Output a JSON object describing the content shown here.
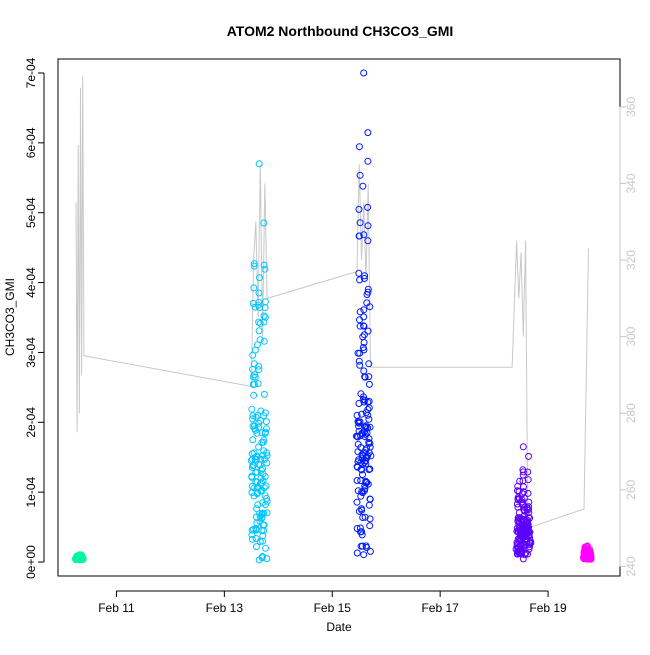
{
  "chart_data": {
    "type": "scatter",
    "title": "ATOM2 Northbound CH3CO3_GMI",
    "xlabel": "Date",
    "ylabel": "CH3CO3_GMI",
    "xlim": [
      "2017-02-09T22:00",
      "2017-02-20T08:00"
    ],
    "ylim": [
      -2e-05,
      0.00072
    ],
    "y2lim": [
      237.5,
      372.5
    ],
    "x_ticks": [
      {
        "label": "Feb 11",
        "date": "2017-02-11"
      },
      {
        "label": "Feb 13",
        "date": "2017-02-13"
      },
      {
        "label": "Feb 15",
        "date": "2017-02-15"
      },
      {
        "label": "Feb 17",
        "date": "2017-02-17"
      },
      {
        "label": "Feb 19",
        "date": "2017-02-19"
      }
    ],
    "y_ticks": [
      {
        "label": "0e+00",
        "value": 0
      },
      {
        "label": "1e-04",
        "value": 0.0001
      },
      {
        "label": "2e-04",
        "value": 0.0002
      },
      {
        "label": "3e-04",
        "value": 0.0003
      },
      {
        "label": "4e-04",
        "value": 0.0004
      },
      {
        "label": "5e-04",
        "value": 0.0005
      },
      {
        "label": "6e-04",
        "value": 0.0006
      },
      {
        "label": "7e-04",
        "value": 0.0007
      }
    ],
    "y2_ticks": [
      {
        "label": "240",
        "value": 240
      },
      {
        "label": "260",
        "value": 260
      },
      {
        "label": "280",
        "value": 280
      },
      {
        "label": "300",
        "value": 300
      },
      {
        "label": "320",
        "value": 320
      },
      {
        "label": "340",
        "value": 340
      },
      {
        "label": "360",
        "value": 360
      }
    ],
    "grid": false,
    "legend": "none",
    "colors": {
      "axis": "#000000",
      "secondary_axis": "#c8c8c8",
      "secondary_line": "#c8c8c8"
    },
    "flights": [
      {
        "start": "2017-02-10T06:00",
        "end": "2017-02-10T09:00",
        "color": "#00f7a0",
        "ymin": 3.5e-06,
        "ymax": 1.05e-05
      },
      {
        "start": "2017-02-13T12:00",
        "end": "2017-02-13T19:00",
        "color": "#00c4ff",
        "ymin": 3e-06,
        "ymax": 0.00057
      },
      {
        "start": "2017-02-15T11:00",
        "end": "2017-02-15T17:00",
        "color": "#0019ff",
        "ymin": 1.05e-05,
        "ymax": 0.0007
      },
      {
        "start": "2017-02-18T10:00",
        "end": "2017-02-18T16:00",
        "color": "#5c00ff",
        "ymin": 4.5e-06,
        "ymax": 0.000165
      },
      {
        "start": "2017-02-19T16:00",
        "end": "2017-02-19T19:00",
        "color": "#ff00ff",
        "ymin": 4e-06,
        "ymax": 2.3e-05
      }
    ],
    "secondary_series": [
      {
        "x": "2017-02-10T06:00",
        "y": 335
      },
      {
        "x": "2017-02-10T06:30",
        "y": 275
      },
      {
        "x": "2017-02-10T07:00",
        "y": 350
      },
      {
        "x": "2017-02-10T07:30",
        "y": 280
      },
      {
        "x": "2017-02-10T08:00",
        "y": 365
      },
      {
        "x": "2017-02-10T08:30",
        "y": 290
      },
      {
        "x": "2017-02-10T09:00",
        "y": 368
      },
      {
        "x": "2017-02-10T09:30",
        "y": 295
      },
      {
        "x": "2017-02-13T12:00",
        "y": 287
      },
      {
        "x": "2017-02-13T13:00",
        "y": 320
      },
      {
        "x": "2017-02-13T14:00",
        "y": 330
      },
      {
        "x": "2017-02-13T15:00",
        "y": 305
      },
      {
        "x": "2017-02-13T16:00",
        "y": 345
      },
      {
        "x": "2017-02-13T17:00",
        "y": 300
      },
      {
        "x": "2017-02-13T18:00",
        "y": 340
      },
      {
        "x": "2017-02-13T19:00",
        "y": 310
      },
      {
        "x": "2017-02-15T11:00",
        "y": 317
      },
      {
        "x": "2017-02-15T12:00",
        "y": 345
      },
      {
        "x": "2017-02-15T13:00",
        "y": 320
      },
      {
        "x": "2017-02-15T14:00",
        "y": 335
      },
      {
        "x": "2017-02-15T15:00",
        "y": 315
      },
      {
        "x": "2017-02-15T16:00",
        "y": 340
      },
      {
        "x": "2017-02-15T17:00",
        "y": 292
      },
      {
        "x": "2017-02-18T08:00",
        "y": 292
      },
      {
        "x": "2017-02-18T10:00",
        "y": 325
      },
      {
        "x": "2017-02-18T11:00",
        "y": 310
      },
      {
        "x": "2017-02-18T12:00",
        "y": 322
      },
      {
        "x": "2017-02-18T13:00",
        "y": 300
      },
      {
        "x": "2017-02-18T14:00",
        "y": 325
      },
      {
        "x": "2017-02-18T15:00",
        "y": 250
      },
      {
        "x": "2017-02-19T16:00",
        "y": 255
      },
      {
        "x": "2017-02-19T18:00",
        "y": 323
      }
    ]
  }
}
